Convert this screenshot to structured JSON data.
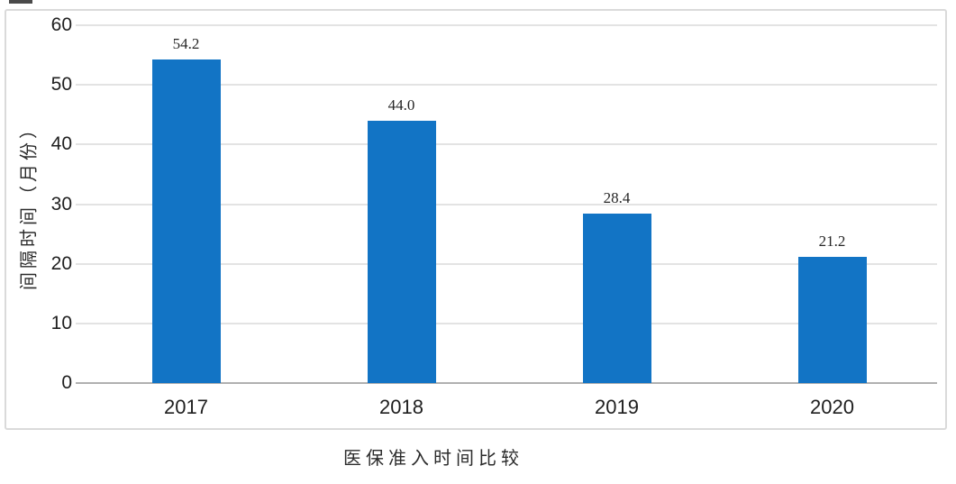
{
  "chart_data": {
    "type": "bar",
    "title": "医保准入时间比较",
    "ylabel": "间隔时间（月份）",
    "xlabel": "",
    "categories": [
      "2017",
      "2018",
      "2019",
      "2020"
    ],
    "values": [
      54.2,
      44.0,
      28.4,
      21.2
    ],
    "value_labels": [
      "54.2",
      "44.0",
      "28.4",
      "21.2"
    ],
    "yticks": [
      0,
      10,
      20,
      30,
      40,
      50,
      60
    ],
    "ylim": [
      0,
      60
    ],
    "grid": true,
    "legend": "none",
    "bar_color": "#1274c5",
    "gridline_color": "#e3e3e3",
    "axis_line_color": "#b0b0b0",
    "frame_border_color": "#dadada"
  }
}
